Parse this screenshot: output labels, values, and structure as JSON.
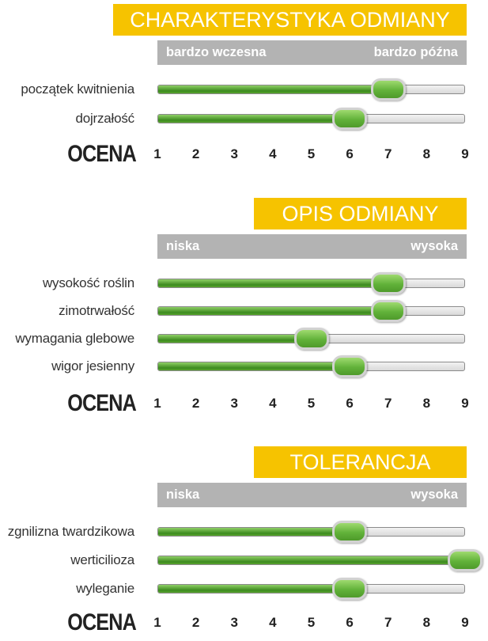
{
  "axis_label": "OCENA",
  "colors": {
    "title_bg": "#f6c300",
    "header_bg": "#b3b3b3",
    "bar_fill": "#4e9a2a",
    "track": "#e0e0e0"
  },
  "chart_data": [
    {
      "type": "bar",
      "orientation": "horizontal",
      "title": "CHARAKTERYSTYKA ODMIANY",
      "scale_low": "bardzo wczesna",
      "scale_high": "bardzo późna",
      "categories": [
        "początek kwitnienia",
        "dojrzałość"
      ],
      "values": [
        7,
        6
      ],
      "xlabel": "OCENA",
      "xticks": [
        1,
        2,
        3,
        4,
        5,
        6,
        7,
        8,
        9
      ],
      "xlim": [
        1,
        9
      ]
    },
    {
      "type": "bar",
      "orientation": "horizontal",
      "title": "OPIS ODMIANY",
      "scale_low": "niska",
      "scale_high": "wysoka",
      "categories": [
        "wysokość roślin",
        "zimotrwałość",
        "wymagania glebowe",
        "wigor jesienny"
      ],
      "values": [
        7,
        7,
        5,
        6
      ],
      "xlabel": "OCENA",
      "xticks": [
        1,
        2,
        3,
        4,
        5,
        6,
        7,
        8,
        9
      ],
      "xlim": [
        1,
        9
      ]
    },
    {
      "type": "bar",
      "orientation": "horizontal",
      "title": "TOLERANCJA",
      "scale_low": "niska",
      "scale_high": "wysoka",
      "categories": [
        "zgnilizna twardzikowa",
        "werticilioza",
        "wyleganie"
      ],
      "values": [
        6,
        9,
        6
      ],
      "xlabel": "OCENA",
      "xticks": [
        1,
        2,
        3,
        4,
        5,
        6,
        7,
        8,
        9
      ],
      "xlim": [
        1,
        9
      ]
    }
  ]
}
